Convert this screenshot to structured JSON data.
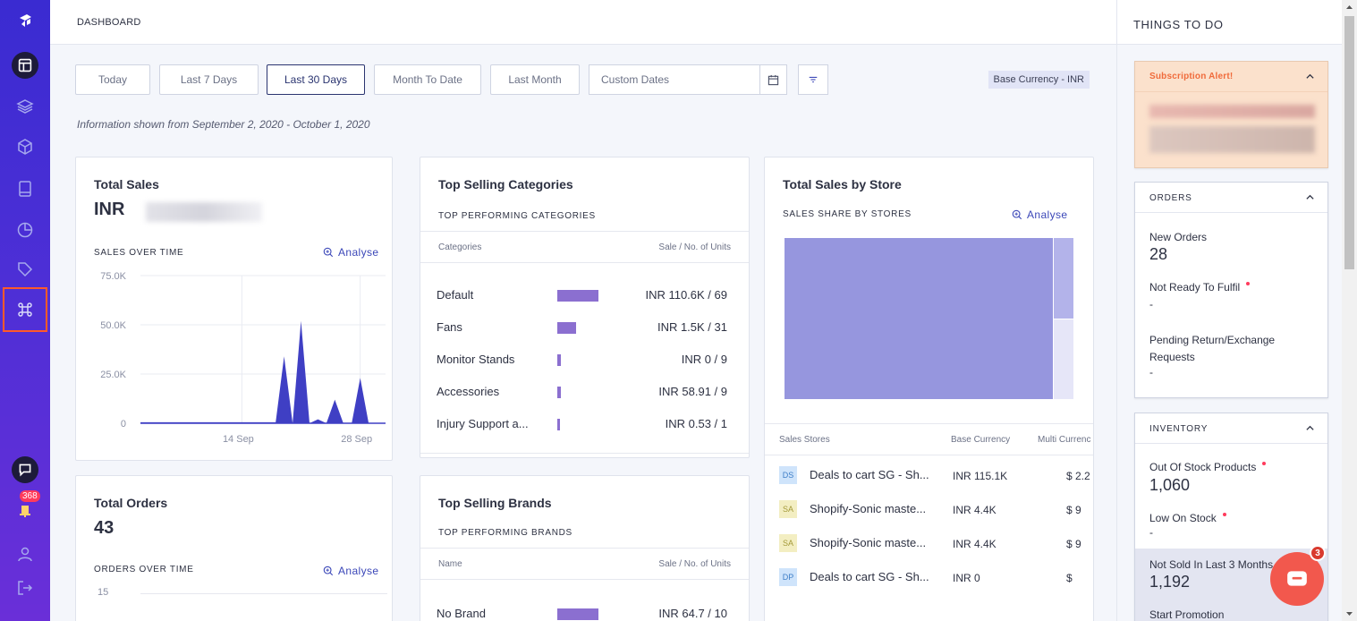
{
  "header": {
    "title": "DASHBOARD"
  },
  "filters": {
    "buttons": [
      "Today",
      "Last 7 Days",
      "Last 30 Days",
      "Month To Date",
      "Last Month"
    ],
    "active": "Last 30 Days",
    "custom_placeholder": "Custom Dates",
    "currency": "Base Currency - INR"
  },
  "info_text": "Information shown from September 2, 2020 - October 1, 2020",
  "total_sales": {
    "title": "Total Sales",
    "currency": "INR",
    "subtitle": "SALES OVER TIME",
    "analyse": "Analyse"
  },
  "total_orders": {
    "title": "Total Orders",
    "value": "43",
    "subtitle": "ORDERS OVER TIME",
    "analyse": "Analyse",
    "first_tick": "15"
  },
  "top_categories": {
    "title": "Top Selling Categories",
    "subtitle": "TOP PERFORMING CATEGORIES",
    "col_name": "Categories",
    "col_value": "Sale / No. of Units",
    "rows": [
      {
        "name": "Default",
        "value": "INR 110.6K / 69",
        "share": 1.0
      },
      {
        "name": "Fans",
        "value": "INR 1.5K / 31",
        "share": 0.45
      },
      {
        "name": "Monitor Stands",
        "value": "INR 0 / 9",
        "share": 0.08
      },
      {
        "name": "Accessories",
        "value": "INR 58.91 / 9",
        "share": 0.08
      },
      {
        "name": "Injury Support a...",
        "value": "INR 0.53 / 1",
        "share": 0.04
      }
    ]
  },
  "top_brands": {
    "title": "Top Selling Brands",
    "subtitle": "TOP PERFORMING BRANDS",
    "col_name": "Name",
    "col_value": "Sale / No. of Units",
    "rows": [
      {
        "name": "No Brand",
        "value": "INR 64.7 / 10",
        "share": 1.0
      }
    ]
  },
  "sales_by_store": {
    "title": "Total Sales by Store",
    "subtitle": "SALES SHARE BY STORES",
    "analyse": "Analyse",
    "col_store": "Sales Stores",
    "col_base": "Base Currency",
    "col_multi": "Multi Currenc",
    "rows": [
      {
        "initials": "DS",
        "name": "Deals to cart SG - Sh...",
        "base": "INR 115.1K",
        "multi": "$ 2.2",
        "color": "#cfe4fb",
        "text": "#3f7fc7"
      },
      {
        "initials": "SA",
        "name": "Shopify-Sonic maste...",
        "base": "INR 4.4K",
        "multi": "$ 9",
        "color": "#f3eec2",
        "text": "#a49a3a"
      },
      {
        "initials": "SA",
        "name": "Shopify-Sonic maste...",
        "base": "INR 4.4K",
        "multi": "$ 9",
        "color": "#f3eec2",
        "text": "#a49a3a"
      },
      {
        "initials": "DP",
        "name": "Deals to cart SG - Sh...",
        "base": "INR 0",
        "multi": "$",
        "color": "#cfe4fb",
        "text": "#3f7fc7"
      }
    ]
  },
  "chart_data": {
    "type": "area",
    "title": "SALES OVER TIME",
    "y_ticks": [
      "75.0K",
      "50.0K",
      "25.0K",
      "0"
    ],
    "x_ticks": [
      "14 Sep",
      "28 Sep"
    ],
    "ylim": [
      0,
      75000
    ],
    "x": [
      "2 Sep",
      "3 Sep",
      "4 Sep",
      "5 Sep",
      "6 Sep",
      "7 Sep",
      "8 Sep",
      "9 Sep",
      "10 Sep",
      "11 Sep",
      "12 Sep",
      "13 Sep",
      "14 Sep",
      "15 Sep",
      "16 Sep",
      "17 Sep",
      "18 Sep",
      "19 Sep",
      "20 Sep",
      "21 Sep",
      "22 Sep",
      "23 Sep",
      "24 Sep",
      "25 Sep",
      "26 Sep",
      "27 Sep",
      "28 Sep",
      "29 Sep",
      "30 Sep",
      "1 Oct"
    ],
    "values": [
      500,
      500,
      500,
      500,
      500,
      500,
      500,
      500,
      500,
      500,
      500,
      500,
      500,
      500,
      500,
      500,
      500,
      34000,
      0,
      52000,
      0,
      2000,
      0,
      12000,
      0,
      0,
      23000,
      0,
      0,
      0
    ],
    "color": "#3f3fc4"
  },
  "right_panel": {
    "title": "THINGS TO DO",
    "alert_title": "Subscription Alert!",
    "orders": {
      "title": "ORDERS",
      "new_orders_label": "New Orders",
      "new_orders_value": "28",
      "not_ready_label": "Not Ready To Fulfil",
      "not_ready_value": "-",
      "pending_label": "Pending Return/Exchange Requests",
      "pending_value": "-"
    },
    "inventory": {
      "title": "INVENTORY",
      "oos_label": "Out Of Stock Products",
      "oos_value": "1,060",
      "low_label": "Low On Stock",
      "low_value": "-",
      "not_sold_label": "Not Sold In Last 3 Months",
      "not_sold_value": "1,192",
      "promo_label": "Start Promotion"
    }
  },
  "nav": {
    "notifications_count": "368"
  },
  "chat": {
    "badge": "3"
  }
}
